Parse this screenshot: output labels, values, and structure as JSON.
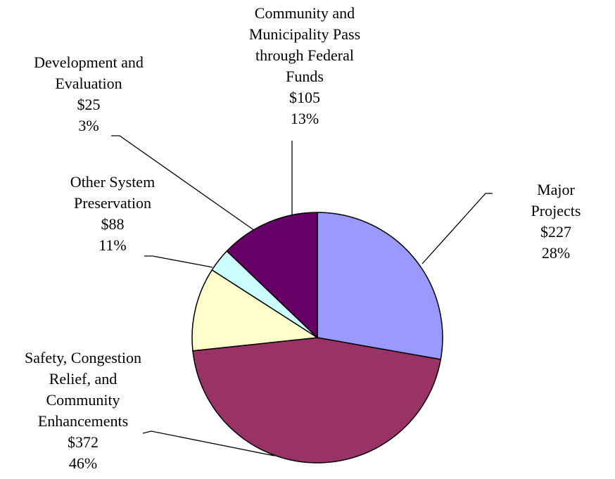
{
  "chart_data": {
    "type": "pie",
    "categories": [
      "Major Projects",
      "Safety, Congestion\nRelief, and\nCommunity\nEnhancements",
      "Other System\nPreservation",
      "Development and\nEvaluation",
      "Community and\nMunicipality Pass\nthrough Federal\nFunds"
    ],
    "values": [
      227,
      372,
      88,
      25,
      105
    ],
    "value_labels": [
      "$227",
      "$372",
      "$88",
      "$25",
      "$105"
    ],
    "percents": [
      28,
      46,
      11,
      3,
      13
    ],
    "percent_labels": [
      "28%",
      "46%",
      "11%",
      "3%",
      "13%"
    ],
    "colors": [
      "#9999ff",
      "#993366",
      "#ffffcc",
      "#ccffff",
      "#660066"
    ]
  }
}
